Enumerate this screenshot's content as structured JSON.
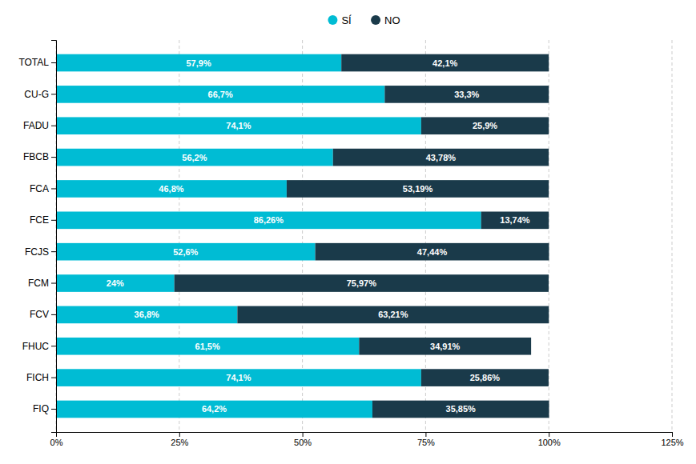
{
  "chart_data": {
    "type": "bar",
    "orientation": "horizontal",
    "stacked": true,
    "data_labels": true,
    "grid": true,
    "legend": "top",
    "categories": [
      "TOTAL",
      "CU-G",
      "FADU",
      "FBCB",
      "FCA",
      "FCE",
      "FCJS",
      "FCM",
      "FCV",
      "FHUC",
      "FICH",
      "FIQ"
    ],
    "series": [
      {
        "name": "SÍ",
        "color": "#00BCD4",
        "values": [
          57.9,
          66.7,
          74.1,
          56.2,
          46.8,
          86.26,
          52.6,
          24.0,
          36.8,
          61.5,
          74.1,
          64.2
        ],
        "value_labels": [
          "57,9%",
          "66,7%",
          "74,1%",
          "56,2%",
          "46,8%",
          "86,26%",
          "52,6%",
          "24%",
          "36,8%",
          "61,5%",
          "74,1%",
          "64,2%"
        ]
      },
      {
        "name": "NO",
        "color": "#1A3A4A",
        "values": [
          42.1,
          33.3,
          25.9,
          43.78,
          53.19,
          13.74,
          47.44,
          75.97,
          63.21,
          34.91,
          25.86,
          35.85
        ],
        "value_labels": [
          "42,1%",
          "33,3%",
          "25,9%",
          "43,78%",
          "53,19%",
          "13,74%",
          "47,44%",
          "75,97%",
          "63,21%",
          "34,91%",
          "25,86%",
          "35,85%"
        ]
      }
    ],
    "xlim": [
      0,
      125
    ],
    "xticks": [
      {
        "value": 0,
        "label": "0%"
      },
      {
        "value": 25,
        "label": "25%"
      },
      {
        "value": 50,
        "label": "50%"
      },
      {
        "value": 75,
        "label": "75%"
      },
      {
        "value": 100,
        "label": "100%"
      },
      {
        "value": 125,
        "label": "125%"
      }
    ]
  }
}
